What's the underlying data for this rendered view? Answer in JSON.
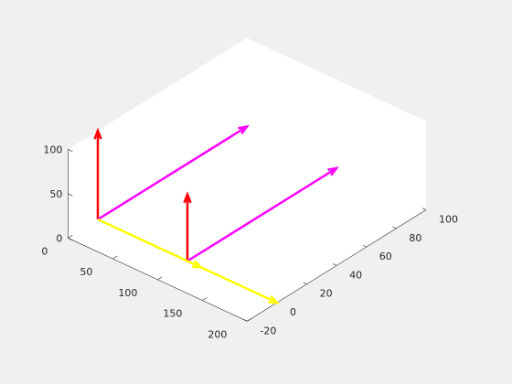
{
  "chart_data": {
    "type": "quiver3",
    "title": "",
    "xlabel": "",
    "ylabel": "",
    "zlabel": "",
    "xlim": [
      0,
      200
    ],
    "ylim": [
      -20,
      100
    ],
    "zlim": [
      0,
      100
    ],
    "xticks": [
      0,
      50,
      100,
      150,
      200
    ],
    "yticks": [
      -20,
      0,
      20,
      40,
      60,
      80,
      100
    ],
    "zticks": [
      0,
      50,
      100
    ],
    "xtick_labels": [
      "0",
      "50",
      "100",
      "150",
      "200"
    ],
    "ytick_labels": [
      "-20",
      "0",
      "20",
      "40",
      "60",
      "80",
      "100"
    ],
    "ztick_labels": [
      "0",
      "50",
      "100"
    ],
    "grid": false,
    "box": false,
    "colors": {
      "figure_bg": "#f0f0f0",
      "axes_bg": "#ffffff",
      "axis_line": "#262626",
      "tick_text": "#262626"
    },
    "vectors": [
      {
        "origin": [
          0,
          0,
          0
        ],
        "direction": [
          0,
          0,
          100
        ],
        "color": "#ff0000"
      },
      {
        "origin": [
          100,
          0,
          0
        ],
        "direction": [
          0,
          0,
          75
        ],
        "color": "#ff0000"
      },
      {
        "origin": [
          0,
          0,
          0
        ],
        "direction": [
          0,
          100,
          0
        ],
        "color": "#ff00ff"
      },
      {
        "origin": [
          100,
          0,
          0
        ],
        "direction": [
          0,
          100,
          0
        ],
        "color": "#ff00ff"
      },
      {
        "origin": [
          0,
          0,
          0
        ],
        "direction": [
          200,
          0,
          0
        ],
        "color": "#ffff00"
      },
      {
        "origin": [
          100,
          0,
          0
        ],
        "direction": [
          15,
          0,
          0
        ],
        "color": "#ffff00"
      }
    ]
  }
}
